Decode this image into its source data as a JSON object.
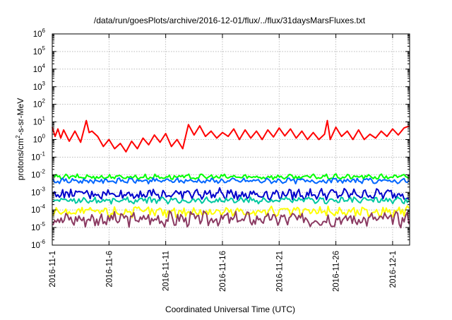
{
  "page": {
    "title": "/data/run/goesPlots/archive/2016-12-01/flux/../flux/31daysMarsFluxes.txt"
  },
  "chart_data": {
    "type": "line",
    "title": "/data/run/goesPlots/archive/2016-12-01/flux/../flux/31daysMarsFluxes.txt",
    "xlabel": "Coordinated Universal Time (UTC)",
    "ylabel": {
      "base": "protons/cm",
      "sup": "2",
      "rest": "-s-sr-MeV"
    },
    "x_range": [
      "2016-11-01",
      "2016-12-02T12:00"
    ],
    "y_scale": "log",
    "ylim": [
      1e-06,
      1000000.0
    ],
    "grid": true,
    "x_ticks": [
      "2016-11-1",
      "2016-11-6",
      "2016-11-11",
      "2016-11-16",
      "2016-11-21",
      "2016-11-26",
      "2016-12-1"
    ],
    "y_ticks": [
      {
        "base": "10",
        "exp": "-6"
      },
      {
        "base": "10",
        "exp": "-5"
      },
      {
        "base": "10",
        "exp": "-4"
      },
      {
        "base": "10",
        "exp": "-3"
      },
      {
        "base": "10",
        "exp": "-2"
      },
      {
        "base": "10",
        "exp": "-1"
      },
      {
        "base": "10",
        "exp": "0"
      },
      {
        "base": "10",
        "exp": "1"
      },
      {
        "base": "10",
        "exp": "2"
      },
      {
        "base": "10",
        "exp": "3"
      },
      {
        "base": "10",
        "exp": "4"
      },
      {
        "base": "10",
        "exp": "5"
      },
      {
        "base": "10",
        "exp": "6"
      }
    ],
    "series": [
      {
        "color": "#ff0000",
        "x": [
          "11-01",
          "11-01T06",
          "11-01T12",
          "11-01T18",
          "11-02",
          "11-02T12",
          "11-03",
          "11-03T12",
          "11-04",
          "11-04T06",
          "11-04T12",
          "11-05",
          "11-05T12",
          "11-06",
          "11-06T12",
          "11-07",
          "11-07T12",
          "11-08",
          "11-08T12",
          "11-09",
          "11-09T12",
          "11-10",
          "11-10T12",
          "11-11",
          "11-11T12",
          "11-12",
          "11-12T12",
          "11-13",
          "11-13T12",
          "11-14",
          "11-14T12",
          "11-15",
          "11-15T12",
          "11-16",
          "11-16T12",
          "11-17",
          "11-17T12",
          "11-18",
          "11-18T12",
          "11-19",
          "11-19T12",
          "11-20",
          "11-20T12",
          "11-21",
          "11-21T12",
          "11-22",
          "11-22T12",
          "11-23",
          "11-23T12",
          "11-24",
          "11-24T12",
          "11-25",
          "11-25T06",
          "11-25T12",
          "11-26",
          "11-26T12",
          "11-27",
          "11-27T12",
          "11-28",
          "11-28T12",
          "11-29",
          "11-29T12",
          "11-30",
          "11-30T12",
          "12-01",
          "12-01T12",
          "12-02",
          "12-02T12"
        ],
        "y": [
          5.0,
          1.5,
          4.0,
          1.2,
          3.5,
          0.8,
          3.0,
          0.7,
          12.0,
          2.5,
          3.0,
          1.5,
          0.4,
          1.0,
          0.3,
          0.6,
          0.2,
          0.8,
          0.3,
          1.2,
          0.5,
          1.8,
          0.7,
          2.2,
          0.4,
          1.0,
          0.3,
          7.0,
          1.8,
          6.0,
          1.5,
          3.0,
          1.2,
          2.5,
          1.5,
          4.0,
          1.0,
          3.5,
          1.2,
          3.0,
          1.0,
          3.5,
          1.4,
          4.5,
          1.6,
          4.0,
          1.2,
          3.0,
          1.0,
          2.5,
          1.0,
          2.0,
          12.0,
          1.0,
          5.0,
          1.5,
          3.0,
          1.0,
          3.5,
          1.0,
          2.0,
          1.2,
          3.0,
          1.5,
          4.0,
          1.8,
          4.5,
          6.0
        ]
      },
      {
        "color": "#00ff00",
        "base": 0.0075,
        "amp": 0.12
      },
      {
        "color": "#0066ff",
        "base": 0.0045,
        "amp": 0.12
      },
      {
        "color": "#0000cc",
        "base": 0.0008,
        "amp": 0.25
      },
      {
        "color": "#00c8a0",
        "base": 0.00035,
        "amp": 0.15
      },
      {
        "color": "#ffff00",
        "base": 8e-05,
        "amp": 0.25
      },
      {
        "color": "#8b3a62",
        "base": 3e-05,
        "amp": 0.35
      }
    ]
  }
}
